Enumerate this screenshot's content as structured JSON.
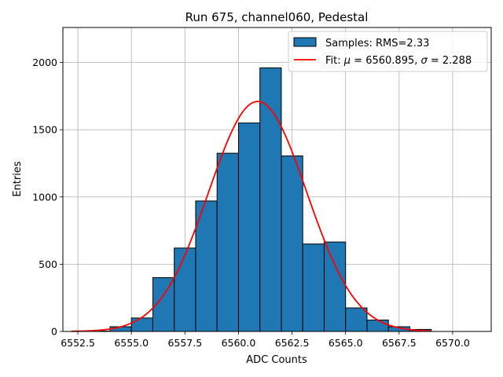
{
  "chart_data": {
    "type": "bar",
    "title": "Run 675, channel060, Pedestal",
    "xlabel": "ADC Counts",
    "ylabel": "Entries",
    "xlim": [
      6551.8,
      6571.8
    ],
    "ylim": [
      0,
      2260
    ],
    "x_ticks": [
      6552.5,
      6555.0,
      6557.5,
      6560.0,
      6562.5,
      6565.0,
      6567.5,
      6570.0
    ],
    "x_tick_labels": [
      "6552.5",
      "6555.0",
      "6557.5",
      "6560.0",
      "6562.5",
      "6565.0",
      "6567.5",
      "6570.0"
    ],
    "y_ticks": [
      0,
      500,
      1000,
      1500,
      2000
    ],
    "y_tick_labels": [
      "0",
      "500",
      "1000",
      "1500",
      "2000"
    ],
    "grid": true,
    "legend_position": "top-right",
    "histogram": {
      "name": "Samples: RMS=2.33",
      "color": "#1f77b4",
      "edge_color": "#000000",
      "bin_edges": [
        6552,
        6553,
        6554,
        6555,
        6556,
        6557,
        6558,
        6559,
        6560,
        6561,
        6562,
        6563,
        6564,
        6565,
        6566,
        6567,
        6568,
        6569
      ],
      "counts": [
        0,
        3,
        35,
        100,
        400,
        620,
        970,
        1325,
        1550,
        1960,
        1305,
        650,
        665,
        175,
        85,
        35,
        15
      ]
    },
    "fit": {
      "name_prefix": "Fit: ",
      "name_mu": "μ",
      "name_mid": " = 6560.895, ",
      "name_sigma": "σ",
      "name_suffix": " = 2.288",
      "color": "#ff0000",
      "mu": 6560.895,
      "sigma": 2.288,
      "amplitude": 1710,
      "x_range": [
        6552.2,
        6569.0
      ]
    }
  }
}
